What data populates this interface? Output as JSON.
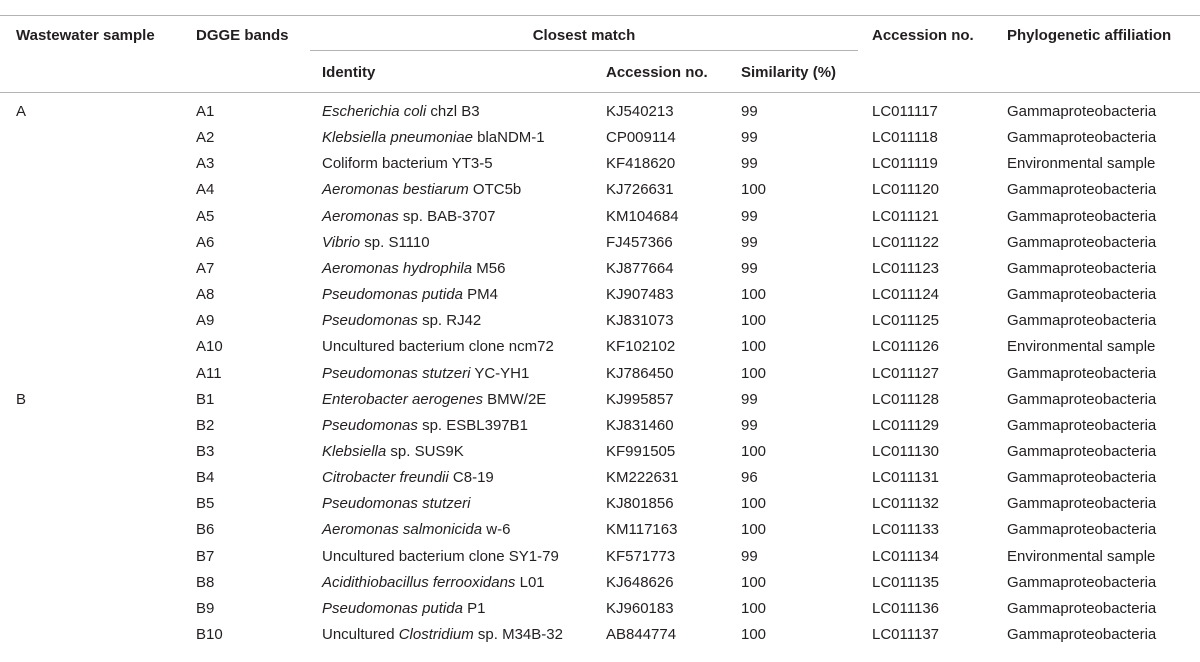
{
  "headers": {
    "wastewater_sample": "Wastewater sample",
    "dgge_bands": "DGGE bands",
    "closest_match": "Closest match",
    "identity": "Identity",
    "cm_accession": "Accession no.",
    "similarity": "Similarity (%)",
    "accession": "Accession no.",
    "phylo": "Phylogenetic affiliation"
  },
  "rows": [
    {
      "sample": "A",
      "band": "A1",
      "id_italic": "Escherichia coli",
      "id_rest": " chzl B3",
      "cm_acc": "KJ540213",
      "sim": "99",
      "acc": "LC011117",
      "phylo": "Gammaproteobacteria"
    },
    {
      "sample": "",
      "band": "A2",
      "id_italic": "Klebsiella pneumoniae",
      "id_rest": " blaNDM-1",
      "cm_acc": "CP009114",
      "sim": "99",
      "acc": "LC011118",
      "phylo": "Gammaproteobacteria"
    },
    {
      "sample": "",
      "band": "A3",
      "id_pre": "Coliform bacterium YT3-5",
      "cm_acc": "KF418620",
      "sim": "99",
      "acc": "LC011119",
      "phylo": "Environmental sample"
    },
    {
      "sample": "",
      "band": "A4",
      "id_italic": "Aeromonas bestiarum",
      "id_rest": " OTC5b",
      "cm_acc": "KJ726631",
      "sim": "100",
      "acc": "LC011120",
      "phylo": "Gammaproteobacteria"
    },
    {
      "sample": "",
      "band": "A5",
      "id_italic": "Aeromonas",
      "id_rest": " sp. BAB-3707",
      "cm_acc": "KM104684",
      "sim": "99",
      "acc": "LC011121",
      "phylo": "Gammaproteobacteria"
    },
    {
      "sample": "",
      "band": "A6",
      "id_italic": "Vibrio",
      "id_rest": " sp. S1110",
      "cm_acc": "FJ457366",
      "sim": "99",
      "acc": "LC011122",
      "phylo": "Gammaproteobacteria"
    },
    {
      "sample": "",
      "band": "A7",
      "id_italic": "Aeromonas hydrophila",
      "id_rest": " M56",
      "cm_acc": "KJ877664",
      "sim": "99",
      "acc": "LC011123",
      "phylo": "Gammaproteobacteria"
    },
    {
      "sample": "",
      "band": "A8",
      "id_italic": "Pseudomonas putida",
      "id_rest": " PM4",
      "cm_acc": "KJ907483",
      "sim": "100",
      "acc": "LC011124",
      "phylo": "Gammaproteobacteria"
    },
    {
      "sample": "",
      "band": "A9",
      "id_italic": "Pseudomonas",
      "id_rest": " sp. RJ42",
      "cm_acc": "KJ831073",
      "sim": "100",
      "acc": "LC011125",
      "phylo": "Gammaproteobacteria"
    },
    {
      "sample": "",
      "band": "A10",
      "id_pre": "Uncultured bacterium clone ncm72",
      "cm_acc": "KF102102",
      "sim": "100",
      "acc": "LC011126",
      "phylo": "Environmental sample"
    },
    {
      "sample": "",
      "band": "A11",
      "id_italic": "Pseudomonas stutzeri",
      "id_rest": " YC-YH1",
      "cm_acc": "KJ786450",
      "sim": "100",
      "acc": "LC011127",
      "phylo": "Gammaproteobacteria"
    },
    {
      "sample": "B",
      "band": "B1",
      "id_italic": "Enterobacter aerogenes",
      "id_rest": " BMW/2E",
      "cm_acc": "KJ995857",
      "sim": "99",
      "acc": "LC011128",
      "phylo": "Gammaproteobacteria"
    },
    {
      "sample": "",
      "band": "B2",
      "id_italic": "Pseudomonas",
      "id_rest": " sp. ESBL397B1",
      "cm_acc": "KJ831460",
      "sim": "99",
      "acc": "LC011129",
      "phylo": "Gammaproteobacteria"
    },
    {
      "sample": "",
      "band": "B3",
      "id_italic": "Klebsiella",
      "id_rest": " sp. SUS9K",
      "cm_acc": "KF991505",
      "sim": "100",
      "acc": "LC011130",
      "phylo": "Gammaproteobacteria"
    },
    {
      "sample": "",
      "band": "B4",
      "id_italic": "Citrobacter freundii",
      "id_rest": " C8-19",
      "cm_acc": "KM222631",
      "sim": "96",
      "acc": "LC011131",
      "phylo": "Gammaproteobacteria"
    },
    {
      "sample": "",
      "band": "B5",
      "id_italic": "Pseudomonas stutzeri",
      "cm_acc": "KJ801856",
      "sim": "100",
      "acc": "LC011132",
      "phylo": "Gammaproteobacteria"
    },
    {
      "sample": "",
      "band": "B6",
      "id_italic": "Aeromonas salmonicida",
      "id_rest": " w-6",
      "cm_acc": "KM117163",
      "sim": "100",
      "acc": "LC011133",
      "phylo": "Gammaproteobacteria"
    },
    {
      "sample": "",
      "band": "B7",
      "id_pre": "Uncultured bacterium clone SY1-79",
      "cm_acc": "KF571773",
      "sim": "99",
      "acc": "LC011134",
      "phylo": "Environmental sample"
    },
    {
      "sample": "",
      "band": "B8",
      "id_italic": "Acidithiobacillus ferrooxidans",
      "id_rest": " L01",
      "cm_acc": "KJ648626",
      "sim": "100",
      "acc": "LC011135",
      "phylo": "Gammaproteobacteria"
    },
    {
      "sample": "",
      "band": "B9",
      "id_italic": "Pseudomonas putida",
      "id_rest": " P1",
      "cm_acc": "KJ960183",
      "sim": "100",
      "acc": "LC011136",
      "phylo": "Gammaproteobacteria"
    },
    {
      "sample": "",
      "band": "B10",
      "id_pre": "Uncultured ",
      "id_italic": "Clostridium",
      "id_rest": " sp. M34B-32",
      "cm_acc": "AB844774",
      "sim": "100",
      "acc": "LC011137",
      "phylo": "Gammaproteobacteria"
    }
  ]
}
